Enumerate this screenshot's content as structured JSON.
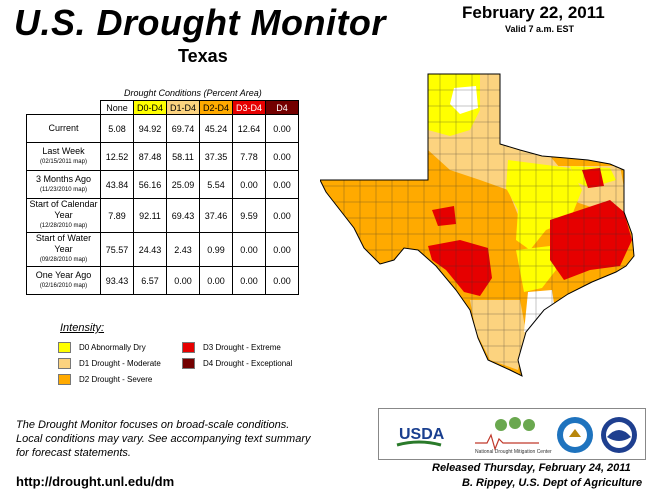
{
  "header": {
    "title": "U.S. Drought Monitor",
    "date": "February 22, 2011",
    "valid": "Valid 7 a.m. EST",
    "state": "Texas"
  },
  "table": {
    "title": "Drought Conditions (Percent Area)",
    "columns": [
      "None",
      "D0-D4",
      "D1-D4",
      "D2-D4",
      "D3-D4",
      "D4"
    ],
    "column_colors": [
      "#ffffff",
      "#ffff00",
      "#fcd37f",
      "#ffaa00",
      "#e60000",
      "#730000"
    ],
    "rows": [
      {
        "label": "Current",
        "sub": "",
        "values": [
          "5.08",
          "94.92",
          "69.74",
          "45.24",
          "12.64",
          "0.00"
        ]
      },
      {
        "label": "Last Week",
        "sub": "(02/15/2011 map)",
        "values": [
          "12.52",
          "87.48",
          "58.11",
          "37.35",
          "7.78",
          "0.00"
        ]
      },
      {
        "label": "3 Months Ago",
        "sub": "(11/23/2010 map)",
        "values": [
          "43.84",
          "56.16",
          "25.09",
          "5.54",
          "0.00",
          "0.00"
        ]
      },
      {
        "label": "Start of Calendar Year",
        "sub": "(12/28/2010 map)",
        "values": [
          "7.89",
          "92.11",
          "69.43",
          "37.46",
          "9.59",
          "0.00"
        ]
      },
      {
        "label": "Start of Water Year",
        "sub": "(09/28/2010 map)",
        "values": [
          "75.57",
          "24.43",
          "2.43",
          "0.99",
          "0.00",
          "0.00"
        ]
      },
      {
        "label": "One Year Ago",
        "sub": "(02/16/2010 map)",
        "values": [
          "93.43",
          "6.57",
          "0.00",
          "0.00",
          "0.00",
          "0.00"
        ]
      }
    ]
  },
  "legend": {
    "title": "Intensity:",
    "items": [
      {
        "label": "D0 Abnormally Dry",
        "color": "#ffff00"
      },
      {
        "label": "D1 Drought - Moderate",
        "color": "#fcd37f"
      },
      {
        "label": "D2 Drought - Severe",
        "color": "#ffaa00"
      },
      {
        "label": "D3 Drought - Extreme",
        "color": "#e60000"
      },
      {
        "label": "D4 Drought - Exceptional",
        "color": "#730000"
      }
    ]
  },
  "footer": {
    "note_line1": "The Drought Monitor focuses on broad-scale conditions.",
    "note_line2": "Local conditions may vary. See accompanying text summary",
    "note_line3": "for forecast statements.",
    "url": "http://drought.unl.edu/dm",
    "released": "Released Thursday, February 24, 2011",
    "author": "B. Rippey, U.S. Dept of Agriculture"
  },
  "logos": {
    "usda": "USDA",
    "ndmc": "National Drought Mitigation Center"
  }
}
